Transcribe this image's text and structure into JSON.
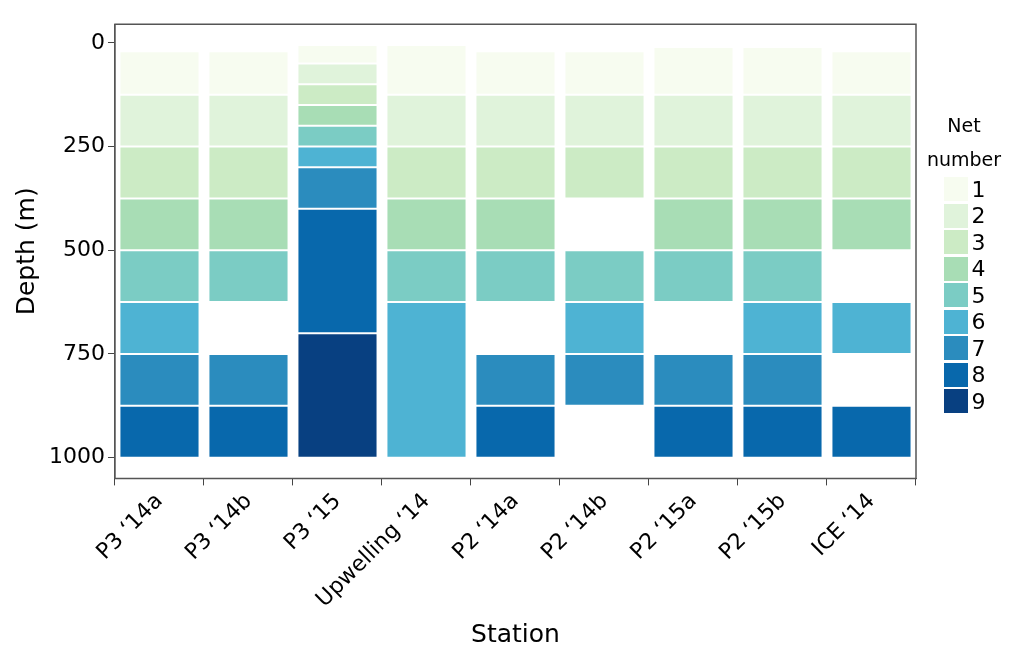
{
  "chart_data": {
    "type": "bar",
    "xlabel": "Station",
    "ylabel": "Depth (m)",
    "legend_title": "Net number",
    "legend": "right",
    "categories": [
      "P3 ‘14a",
      "P3 ‘14b",
      "P3 ‘15",
      "Upwelling ‘14",
      "P2 ‘14a",
      "P2 ‘14b",
      "P2 ‘15a",
      "P2 ‘15b",
      "ICE ‘14"
    ],
    "ylim": [
      1050,
      -45
    ],
    "yticks": [
      0,
      250,
      500,
      750,
      1000
    ],
    "series": [
      {
        "name": "1",
        "color": "#f7fcf0",
        "base": [
          20,
          20,
          5,
          5,
          20,
          20,
          10,
          10,
          20
        ],
        "values": [
          105,
          105,
          45,
          120,
          105,
          105,
          115,
          115,
          105
        ]
      },
      {
        "name": "2",
        "color": "#e0f3db",
        "base": [
          125,
          125,
          50,
          125,
          125,
          125,
          125,
          125,
          125
        ],
        "values": [
          125,
          125,
          50,
          125,
          125,
          125,
          125,
          125,
          125
        ]
      },
      {
        "name": "3",
        "color": "#ccebc5",
        "base": [
          250,
          250,
          100,
          250,
          250,
          250,
          250,
          250,
          250
        ],
        "values": [
          125,
          125,
          50,
          125,
          125,
          125,
          125,
          125,
          125
        ]
      },
      {
        "name": "4",
        "color": "#a8ddb5",
        "base": [
          375,
          375,
          150,
          375,
          375,
          null,
          375,
          375,
          375
        ],
        "values": [
          125,
          125,
          50,
          125,
          125,
          null,
          125,
          125,
          125
        ]
      },
      {
        "name": "5",
        "color": "#7bccc4",
        "base": [
          500,
          500,
          200,
          500,
          500,
          500,
          500,
          500,
          null
        ],
        "values": [
          125,
          125,
          50,
          125,
          125,
          125,
          125,
          125,
          null
        ]
      },
      {
        "name": "6",
        "color": "#4eb3d3",
        "base": [
          625,
          null,
          250,
          625,
          null,
          625,
          null,
          625,
          625
        ],
        "values": [
          125,
          null,
          50,
          375,
          null,
          125,
          null,
          125,
          125
        ]
      },
      {
        "name": "7",
        "color": "#2b8cbe",
        "base": [
          750,
          750,
          300,
          null,
          750,
          750,
          750,
          750,
          null
        ],
        "values": [
          125,
          125,
          100,
          null,
          125,
          125,
          125,
          125,
          null
        ]
      },
      {
        "name": "8",
        "color": "#0868ac",
        "base": [
          875,
          875,
          400,
          null,
          875,
          null,
          875,
          875,
          875
        ],
        "values": [
          125,
          125,
          300,
          null,
          125,
          null,
          125,
          125,
          125
        ]
      },
      {
        "name": "9",
        "color": "#084081",
        "base": [
          null,
          null,
          700,
          null,
          null,
          null,
          null,
          null,
          null
        ],
        "values": [
          null,
          null,
          300,
          null,
          null,
          null,
          null,
          null,
          null
        ]
      }
    ]
  }
}
